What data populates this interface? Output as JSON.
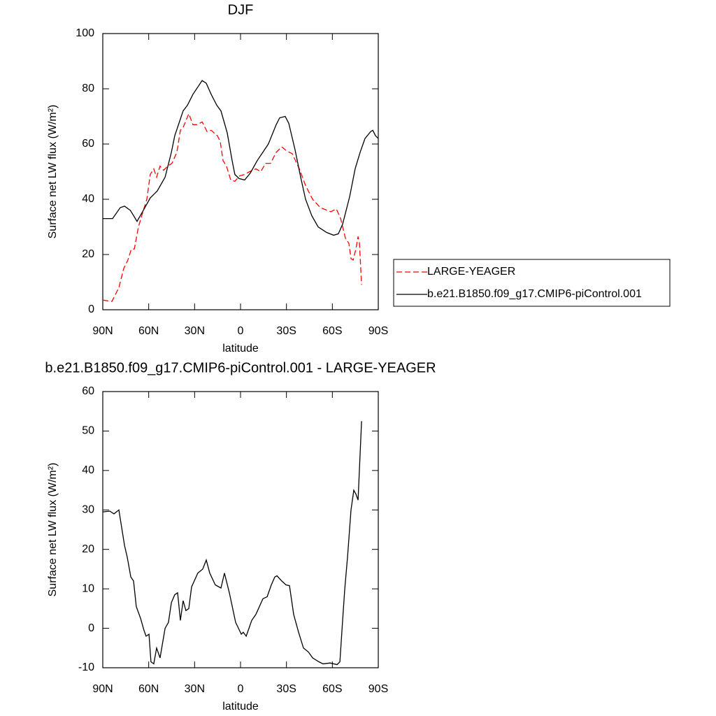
{
  "chart_data": [
    {
      "type": "line",
      "title": "DJF",
      "x_label": "latitude",
      "y_label": "Surface net LW flux (W/m²)",
      "xlim": [
        90,
        -90
      ],
      "ylim": [
        0,
        100
      ],
      "xticks": [
        {
          "value": 90,
          "label": "90N"
        },
        {
          "value": 60,
          "label": "60N"
        },
        {
          "value": 30,
          "label": "30N"
        },
        0,
        {
          "value": -30,
          "label": "30S"
        },
        {
          "value": -60,
          "label": "60S"
        },
        {
          "value": -90,
          "label": "90S"
        }
      ],
      "yticks": [
        0,
        20,
        40,
        60,
        80,
        100
      ],
      "legend": "right",
      "series": [
        {
          "name": "LARGE-YEAGER",
          "color": "#ff0000",
          "line_style": "dashed",
          "x": [
            90,
            84,
            79.5,
            76.3,
            73.6,
            71.3,
            69.4,
            66.7,
            63.5,
            61.2,
            59,
            56.7,
            54.8,
            52.6,
            50.3,
            47.5,
            44.8,
            41.6,
            39.3,
            37.5,
            33.8,
            31.1,
            28.4,
            25.1,
            21.9,
            19.2,
            15.1,
            13.3,
            11.4,
            9.2,
            6.4,
            3.7,
            0.5,
            -2.7,
            -5.9,
            -10,
            -13.2,
            -16.4,
            -19.6,
            -23.3,
            -26.9,
            -30.1,
            -33.8,
            -38.4,
            -42.5,
            -47.1,
            -52.1,
            -56.6,
            -59,
            -62.6,
            -65.4,
            -68.5,
            -70.8,
            -72.2,
            -73.6,
            -75.4,
            -76.8,
            -77.7,
            -79.1
          ],
          "values": [
            3.5,
            3,
            8,
            15,
            18,
            22,
            22,
            30,
            36,
            40,
            49,
            51,
            48,
            52,
            50.5,
            52,
            53,
            57,
            65,
            66,
            71,
            67,
            67,
            68,
            64.5,
            65,
            63,
            61,
            54,
            52,
            47,
            46.5,
            48.5,
            49,
            50,
            51,
            50,
            53,
            53,
            57,
            59,
            57.5,
            56.5,
            51,
            45,
            40,
            37,
            36,
            35.5,
            36.5,
            33,
            26,
            24,
            18.5,
            18,
            22,
            26.5,
            24,
            9
          ]
        },
        {
          "name": "b.e21.B1850.f09_g17.CMIP6-piControl.001",
          "color": "#000000",
          "line_style": "solid",
          "x": [
            90,
            83.6,
            78.6,
            75.8,
            72,
            67.6,
            63.5,
            59,
            54.4,
            49.3,
            45.2,
            43,
            37.5,
            34.7,
            31.1,
            25.1,
            22.4,
            19.2,
            15.5,
            12.8,
            8.7,
            5.5,
            3.7,
            0.9,
            -2.7,
            -6.4,
            -10.9,
            -18.2,
            -23.3,
            -25.6,
            -29.2,
            -31.5,
            -35.6,
            -39.3,
            -42.5,
            -46.6,
            -50.7,
            -56.2,
            -60.8,
            -63.9,
            -66.7,
            -71.3,
            -74.9,
            -78.1,
            -81.3,
            -85,
            -86.4,
            -88.2,
            -90
          ],
          "values": [
            33,
            33,
            37,
            37.5,
            36,
            32,
            36,
            40.5,
            43,
            48,
            57,
            63,
            72,
            74,
            78,
            83,
            82,
            78,
            74,
            72,
            64,
            54,
            49,
            47.5,
            47,
            49.5,
            54,
            60,
            67,
            69.5,
            70,
            67.5,
            58,
            48,
            40,
            34,
            30,
            28,
            27,
            27.5,
            31,
            41,
            51,
            57,
            62,
            64.5,
            65,
            63,
            62
          ]
        }
      ]
    },
    {
      "type": "line",
      "title": "b.e21.B1850.f09_g17.CMIP6-piControl.001 - LARGE-YEAGER",
      "x_label": "latitude",
      "y_label": "Surface net LW flux (W/m²)",
      "xlim": [
        90,
        -90
      ],
      "ylim": [
        -10,
        60
      ],
      "xticks": [
        {
          "value": 90,
          "label": "90N"
        },
        {
          "value": 60,
          "label": "60N"
        },
        {
          "value": 30,
          "label": "30N"
        },
        0,
        {
          "value": -30,
          "label": "30S"
        },
        {
          "value": -60,
          "label": "60S"
        },
        {
          "value": -90,
          "label": "90S"
        }
      ],
      "yticks": [
        -10,
        0,
        10,
        20,
        30,
        40,
        50,
        60
      ],
      "series": [
        {
          "color": "#000000",
          "line_style": "solid",
          "x": [
            90,
            85.4,
            82.7,
            79.5,
            75.8,
            74,
            71.7,
            69.9,
            68.1,
            65.3,
            63.1,
            61.7,
            59.8,
            58.5,
            56.7,
            54.8,
            52.6,
            49.3,
            47.1,
            45.2,
            43,
            41.1,
            39.3,
            37.5,
            35.7,
            33.8,
            32,
            27.9,
            24.7,
            22.4,
            20.1,
            16.5,
            12.8,
            10.5,
            7.3,
            3.2,
            -0.5,
            -1.8,
            -3.7,
            -7.3,
            -10,
            -14.6,
            -17.4,
            -20.1,
            -22.4,
            -23.8,
            -26.9,
            -29.7,
            -32,
            -34.7,
            -37.9,
            -41.1,
            -44.3,
            -47.1,
            -51.2,
            -53.9,
            -58.5,
            -63.1,
            -64.9,
            -66.7,
            -68.1,
            -69.9,
            -72.2,
            -74,
            -75.4,
            -76.8,
            -79.1
          ],
          "values": [
            29.5,
            29.7,
            29,
            30,
            21,
            18,
            13,
            12,
            5.5,
            2.5,
            -0.5,
            -2,
            -1.5,
            -8.5,
            -9,
            -5,
            -7.5,
            0,
            1.5,
            6.5,
            8.5,
            9,
            2,
            7,
            4.5,
            5,
            10.5,
            14,
            15,
            17.3,
            14,
            11,
            10.2,
            14,
            9,
            1.5,
            -1.5,
            -1,
            -2,
            2,
            3.5,
            7.5,
            8,
            11,
            13,
            13.3,
            12,
            11,
            10.8,
            3.5,
            -1,
            -5,
            -6,
            -7.5,
            -8.5,
            -9,
            -8.8,
            -9.2,
            -8.5,
            2,
            10,
            18,
            30,
            35,
            34,
            32.5,
            52.5
          ]
        }
      ]
    }
  ]
}
